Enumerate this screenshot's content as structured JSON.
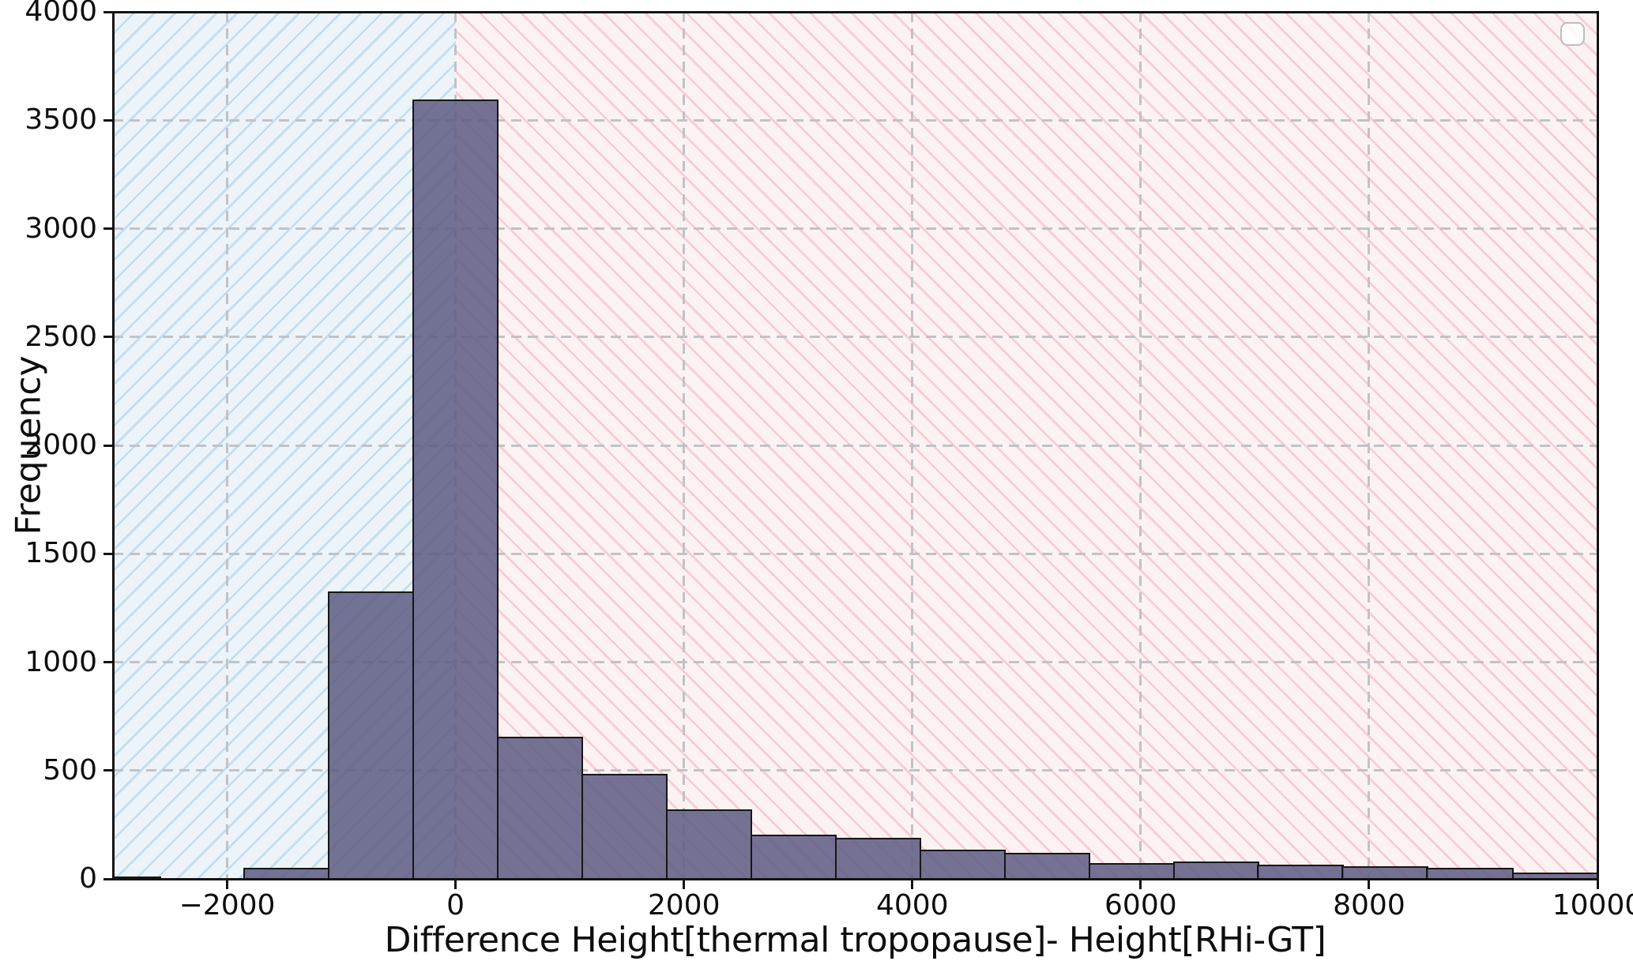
{
  "figure": {
    "background": "#ffffff",
    "plot_background": "#ffffff"
  },
  "axes": {
    "xlabel": "Difference Height[thermal tropopause]- Height[RHi-GT]",
    "ylabel": "Frequency",
    "xlim": [
      -3000,
      10000
    ],
    "ylim": [
      0,
      4000
    ],
    "xticks": [
      -2000,
      0,
      2000,
      4000,
      6000,
      8000,
      10000
    ],
    "xtick_labels": [
      "−2000",
      "0",
      "2000",
      "4000",
      "6000",
      "8000",
      "10000"
    ],
    "yticks": [
      0,
      500,
      1000,
      1500,
      2000,
      2500,
      3000,
      3500,
      4000
    ],
    "ytick_labels": [
      "0",
      "500",
      "1000",
      "1500",
      "2000",
      "2500",
      "3000",
      "3500",
      "4000"
    ],
    "grid_visible": true,
    "grid_color": "#c0c3c6",
    "grid_style": "dashed",
    "spine_color": "#141414"
  },
  "chart_data": {
    "type": "bar",
    "subtype": "histogram",
    "title": "",
    "xlabel": "Difference Height[thermal tropopause]- Height[RHi-GT]",
    "ylabel": "Frequency",
    "xlim": [
      -3000,
      10000
    ],
    "ylim": [
      0,
      4000
    ],
    "grid": "on",
    "bin_edges": [
      -3330,
      -2590,
      -1850,
      -1110,
      -370,
      370,
      1110,
      1850,
      2590,
      3330,
      4070,
      4810,
      5550,
      6290,
      7030,
      7770,
      8510,
      9260,
      10000
    ],
    "counts": [
      8,
      0,
      45,
      1320,
      3590,
      650,
      480,
      315,
      200,
      185,
      130,
      115,
      70,
      75,
      60,
      55,
      47,
      23
    ],
    "bar_fill": "rgba(93,91,130,0.85)",
    "bar_edge_color": "#161616",
    "spans": [
      {
        "name": "negative-difference-region",
        "from": -3000,
        "to": 0,
        "fill": "#ecf4f9",
        "hatch": "/",
        "hatch_color": "#c3dcee"
      },
      {
        "name": "positive-difference-region",
        "from": 0,
        "to": 10000,
        "fill": "#fdf2f2",
        "hatch": "\\",
        "hatch_color": "#f6ccd3"
      }
    ],
    "legend": {
      "visible": true,
      "position": "upper right",
      "entries": []
    }
  }
}
